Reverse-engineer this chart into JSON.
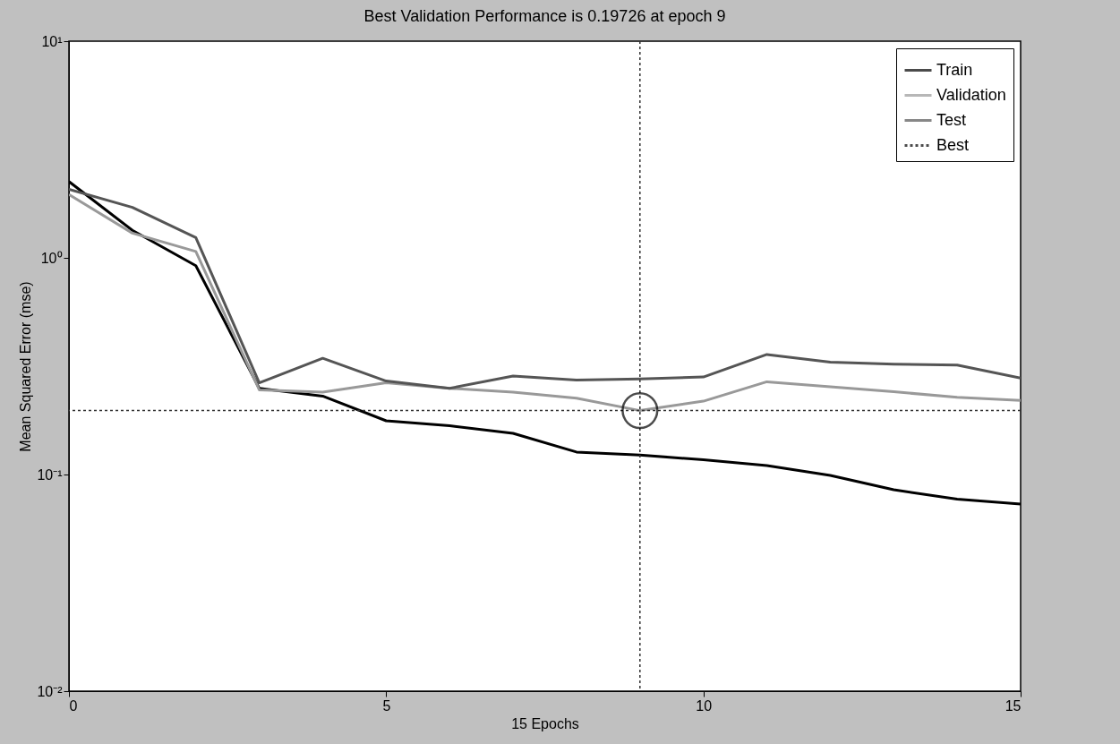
{
  "chart_data": {
    "type": "line",
    "title": "Best Validation Performance is 0.19726 at epoch 9",
    "xlabel": "15 Epochs",
    "ylabel": "Mean Squared Error  (mse)",
    "x": [
      0,
      1,
      2,
      3,
      4,
      5,
      6,
      7,
      8,
      9,
      10,
      11,
      12,
      13,
      14,
      15
    ],
    "series": [
      {
        "name": "Train",
        "color": "#000000",
        "values": [
          2.25,
          1.34,
          0.92,
          0.25,
          0.23,
          0.177,
          0.168,
          0.155,
          0.127,
          0.123,
          0.117,
          0.11,
          0.099,
          0.085,
          0.077,
          0.073
        ]
      },
      {
        "name": "Validation",
        "color": "#999999",
        "values": [
          1.96,
          1.3,
          1.07,
          0.246,
          0.24,
          0.265,
          0.25,
          0.24,
          0.225,
          0.19726,
          0.218,
          0.268,
          0.254,
          0.241,
          0.227,
          0.22
        ]
      },
      {
        "name": "Test",
        "color": "#555555",
        "values": [
          2.07,
          1.71,
          1.24,
          0.265,
          0.344,
          0.27,
          0.25,
          0.285,
          0.273,
          0.276,
          0.282,
          0.358,
          0.33,
          0.323,
          0.32,
          0.279
        ]
      },
      {
        "name": "Best",
        "type": "scatter",
        "marker": "circle",
        "line_style": "dotted",
        "color": "#000000",
        "x": [
          9
        ],
        "values": [
          0.19726
        ]
      }
    ],
    "ref_lines": [
      {
        "axis": "x",
        "value": 9,
        "color": "#333333",
        "line_style": "dotted"
      },
      {
        "axis": "y",
        "value": 0.19726,
        "color": "#333333",
        "line_style": "dotted"
      }
    ],
    "log": "y",
    "xlim": [
      0,
      15
    ],
    "xticks": [
      0,
      5,
      10,
      15
    ],
    "ylim": [
      0.01,
      10
    ],
    "yticks": [
      {
        "value": 0.01,
        "label": "10⁻²"
      },
      {
        "value": 0.1,
        "label": "10⁻¹"
      },
      {
        "value": 1,
        "label": "10⁰"
      },
      {
        "value": 10,
        "label": "10¹"
      }
    ],
    "grid": false,
    "legend": "top right",
    "line_style": "solid"
  }
}
